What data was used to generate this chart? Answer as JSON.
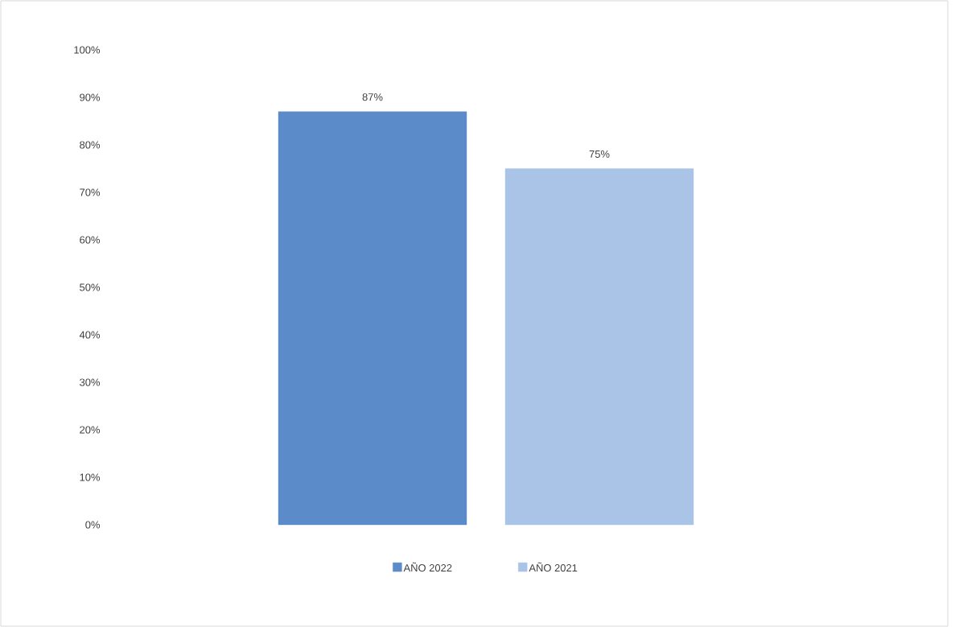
{
  "chart_data": {
    "type": "bar",
    "categories": [
      null
    ],
    "series": [
      {
        "name": "AÑO 2022",
        "color": "#5b8bc8",
        "values": [
          87
        ],
        "value_labels": [
          "87%"
        ]
      },
      {
        "name": "AÑO 2021",
        "color": "#aac4e8",
        "values": [
          75
        ],
        "value_labels": [
          "75%"
        ]
      }
    ],
    "ylim": [
      0,
      100
    ],
    "yticks": [
      {
        "value": 0,
        "label": "0%"
      },
      {
        "value": 10,
        "label": "10%"
      },
      {
        "value": 20,
        "label": "20%"
      },
      {
        "value": 30,
        "label": "30%"
      },
      {
        "value": 40,
        "label": "40%"
      },
      {
        "value": 50,
        "label": "50%"
      },
      {
        "value": 60,
        "label": "60%"
      },
      {
        "value": 70,
        "label": "70%"
      },
      {
        "value": 80,
        "label": "80%"
      },
      {
        "value": 90,
        "label": "90%"
      },
      {
        "value": 100,
        "label": "100%"
      }
    ],
    "legend": "bottom"
  }
}
